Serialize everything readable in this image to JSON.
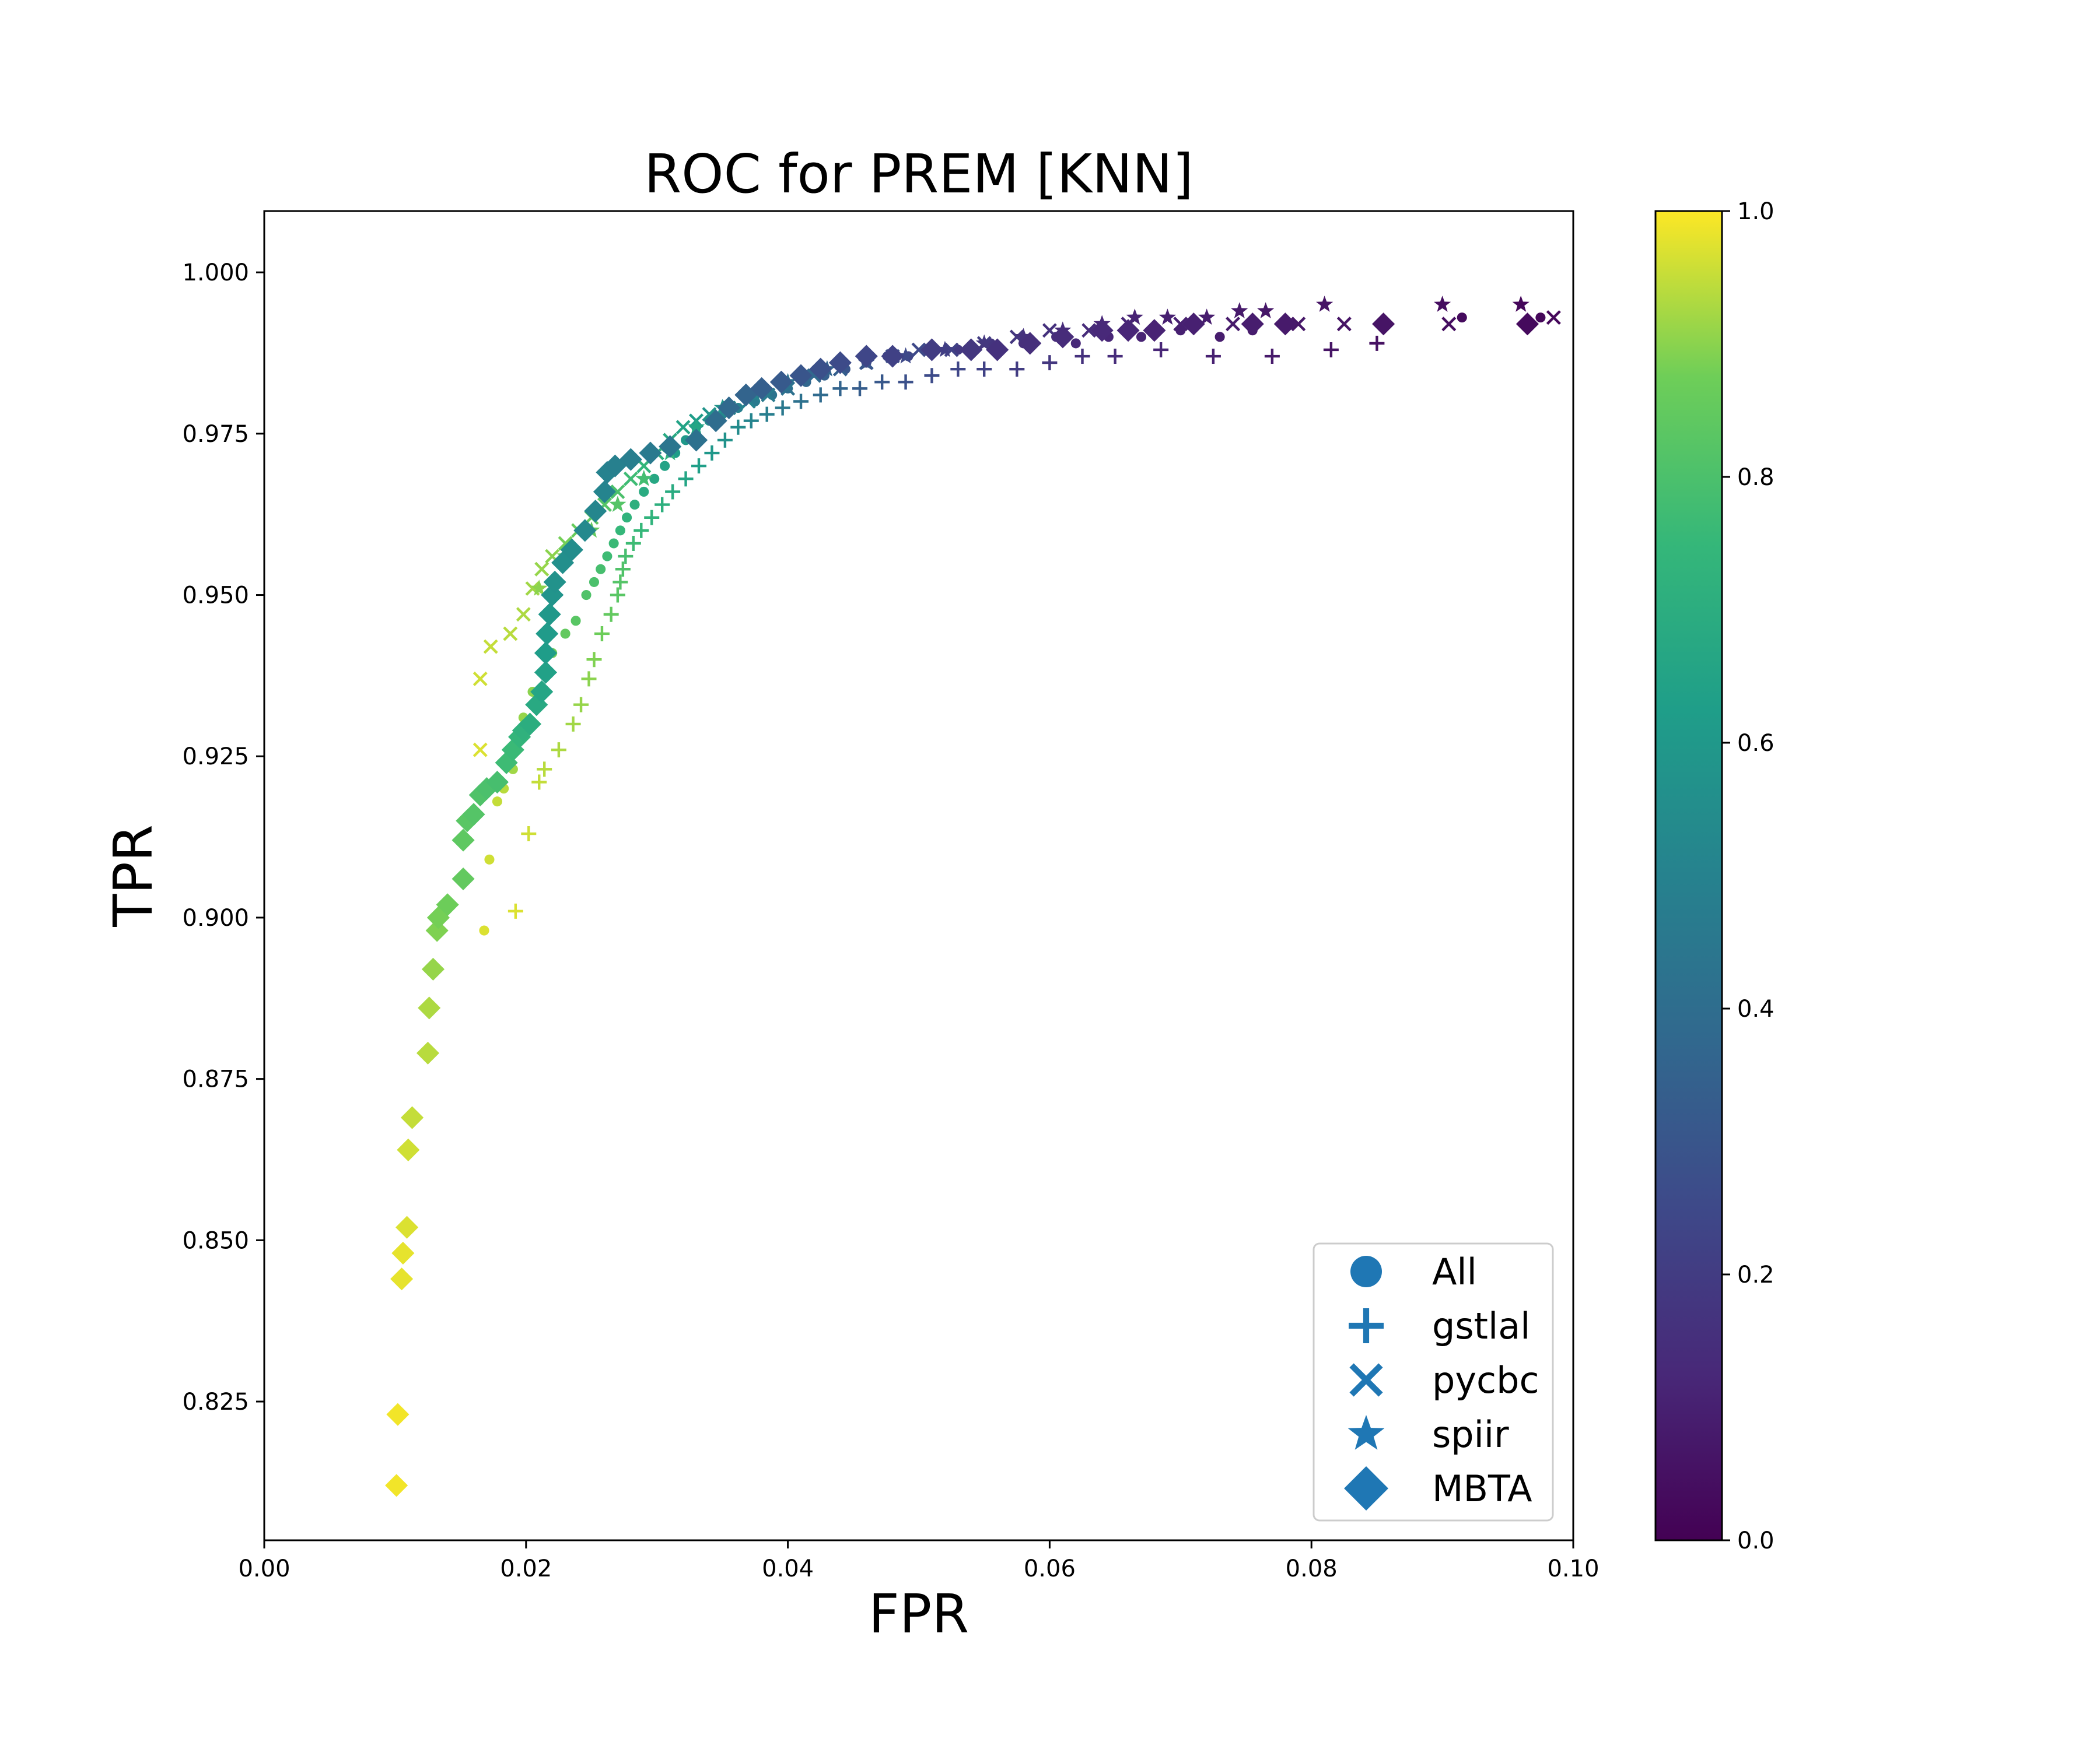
{
  "chart_data": {
    "type": "scatter",
    "title": "ROC for PREM [KNN]",
    "xlabel": "FPR",
    "ylabel": "TPR",
    "xlim": [
      0.0,
      0.1
    ],
    "ylim": [
      0.8035,
      1.0095
    ],
    "xticks": [
      "0.00",
      "0.02",
      "0.04",
      "0.06",
      "0.08",
      "0.10"
    ],
    "yticks": [
      "0.825",
      "0.850",
      "0.875",
      "0.900",
      "0.925",
      "0.950",
      "0.975",
      "1.000"
    ],
    "legend": {
      "position": "lower-right",
      "entries": [
        "All",
        "gstlal",
        "pycbc",
        "spiir",
        "MBTA"
      ]
    },
    "colorbar": {
      "label": "",
      "range": [
        0.0,
        1.0
      ],
      "ticks": [
        "0.0",
        "0.2",
        "0.4",
        "0.6",
        "0.8",
        "1.0"
      ],
      "colormap": "viridis"
    },
    "series": [
      {
        "name": "All",
        "marker": "circle",
        "points": [
          [
            0.0168,
            0.898,
            0.97
          ],
          [
            0.0172,
            0.909,
            0.96
          ],
          [
            0.0178,
            0.918,
            0.95
          ],
          [
            0.0183,
            0.92,
            0.94
          ],
          [
            0.019,
            0.923,
            0.92
          ],
          [
            0.0198,
            0.931,
            0.91
          ],
          [
            0.0205,
            0.935,
            0.9
          ],
          [
            0.0212,
            0.938,
            0.89
          ],
          [
            0.022,
            0.941,
            0.87
          ],
          [
            0.023,
            0.944,
            0.85
          ],
          [
            0.0238,
            0.946,
            0.83
          ],
          [
            0.0246,
            0.95,
            0.81
          ],
          [
            0.0252,
            0.952,
            0.8
          ],
          [
            0.0257,
            0.954,
            0.79
          ],
          [
            0.0262,
            0.956,
            0.77
          ],
          [
            0.0267,
            0.958,
            0.76
          ],
          [
            0.0272,
            0.96,
            0.75
          ],
          [
            0.0277,
            0.962,
            0.73
          ],
          [
            0.0283,
            0.964,
            0.71
          ],
          [
            0.029,
            0.966,
            0.69
          ],
          [
            0.0298,
            0.968,
            0.67
          ],
          [
            0.0306,
            0.97,
            0.65
          ],
          [
            0.0314,
            0.972,
            0.62
          ],
          [
            0.0322,
            0.974,
            0.6
          ],
          [
            0.033,
            0.976,
            0.58
          ],
          [
            0.034,
            0.977,
            0.55
          ],
          [
            0.035,
            0.978,
            0.52
          ],
          [
            0.0362,
            0.979,
            0.49
          ],
          [
            0.0375,
            0.98,
            0.46
          ],
          [
            0.0388,
            0.981,
            0.43
          ],
          [
            0.04,
            0.982,
            0.4
          ],
          [
            0.0414,
            0.983,
            0.37
          ],
          [
            0.0428,
            0.984,
            0.34
          ],
          [
            0.0444,
            0.985,
            0.3
          ],
          [
            0.046,
            0.986,
            0.27
          ],
          [
            0.0476,
            0.987,
            0.25
          ],
          [
            0.0492,
            0.987,
            0.23
          ],
          [
            0.051,
            0.988,
            0.21
          ],
          [
            0.053,
            0.988,
            0.19
          ],
          [
            0.0555,
            0.989,
            0.17
          ],
          [
            0.058,
            0.989,
            0.15
          ],
          [
            0.0605,
            0.99,
            0.14
          ],
          [
            0.062,
            0.989,
            0.13
          ],
          [
            0.0645,
            0.99,
            0.12
          ],
          [
            0.067,
            0.99,
            0.11
          ],
          [
            0.07,
            0.991,
            0.1
          ],
          [
            0.073,
            0.99,
            0.09
          ],
          [
            0.0755,
            0.991,
            0.08
          ],
          [
            0.078,
            0.992,
            0.07
          ],
          [
            0.0855,
            0.992,
            0.05
          ],
          [
            0.0915,
            0.993,
            0.03
          ],
          [
            0.0975,
            0.993,
            0.02
          ]
        ]
      },
      {
        "name": "gstlal",
        "marker": "plus",
        "points": [
          [
            0.0192,
            0.901,
            0.97
          ],
          [
            0.0202,
            0.913,
            0.96
          ],
          [
            0.021,
            0.921,
            0.95
          ],
          [
            0.0214,
            0.923,
            0.94
          ],
          [
            0.0225,
            0.926,
            0.93
          ],
          [
            0.0236,
            0.93,
            0.92
          ],
          [
            0.0242,
            0.933,
            0.91
          ],
          [
            0.0248,
            0.937,
            0.9
          ],
          [
            0.0252,
            0.94,
            0.89
          ],
          [
            0.0258,
            0.944,
            0.87
          ],
          [
            0.0265,
            0.947,
            0.85
          ],
          [
            0.027,
            0.95,
            0.83
          ],
          [
            0.0272,
            0.952,
            0.82
          ],
          [
            0.0274,
            0.954,
            0.81
          ],
          [
            0.0276,
            0.956,
            0.79
          ],
          [
            0.0282,
            0.958,
            0.77
          ],
          [
            0.0288,
            0.96,
            0.75
          ],
          [
            0.0296,
            0.962,
            0.73
          ],
          [
            0.0304,
            0.964,
            0.71
          ],
          [
            0.0312,
            0.966,
            0.69
          ],
          [
            0.0322,
            0.968,
            0.66
          ],
          [
            0.0332,
            0.97,
            0.63
          ],
          [
            0.0342,
            0.972,
            0.6
          ],
          [
            0.0352,
            0.974,
            0.57
          ],
          [
            0.0362,
            0.976,
            0.54
          ],
          [
            0.0372,
            0.977,
            0.51
          ],
          [
            0.0384,
            0.978,
            0.48
          ],
          [
            0.0396,
            0.979,
            0.45
          ],
          [
            0.041,
            0.98,
            0.42
          ],
          [
            0.0425,
            0.981,
            0.39
          ],
          [
            0.044,
            0.982,
            0.36
          ],
          [
            0.0455,
            0.982,
            0.33
          ],
          [
            0.0472,
            0.983,
            0.31
          ],
          [
            0.049,
            0.983,
            0.28
          ],
          [
            0.051,
            0.984,
            0.26
          ],
          [
            0.053,
            0.985,
            0.24
          ],
          [
            0.055,
            0.985,
            0.22
          ],
          [
            0.0575,
            0.985,
            0.2
          ],
          [
            0.06,
            0.986,
            0.18
          ],
          [
            0.0625,
            0.987,
            0.16
          ],
          [
            0.065,
            0.987,
            0.14
          ],
          [
            0.0685,
            0.988,
            0.12
          ],
          [
            0.0725,
            0.987,
            0.1
          ],
          [
            0.077,
            0.987,
            0.08
          ],
          [
            0.0815,
            0.988,
            0.06
          ],
          [
            0.085,
            0.989,
            0.05
          ]
        ]
      },
      {
        "name": "pycbc",
        "marker": "x",
        "points": [
          [
            0.0165,
            0.926,
            0.97
          ],
          [
            0.0165,
            0.937,
            0.96
          ],
          [
            0.0173,
            0.942,
            0.95
          ],
          [
            0.0188,
            0.944,
            0.94
          ],
          [
            0.0198,
            0.947,
            0.93
          ],
          [
            0.0205,
            0.951,
            0.92
          ],
          [
            0.0212,
            0.954,
            0.91
          ],
          [
            0.022,
            0.956,
            0.9
          ],
          [
            0.023,
            0.958,
            0.88
          ],
          [
            0.024,
            0.96,
            0.86
          ],
          [
            0.025,
            0.962,
            0.84
          ],
          [
            0.026,
            0.964,
            0.82
          ],
          [
            0.027,
            0.966,
            0.8
          ],
          [
            0.028,
            0.968,
            0.77
          ],
          [
            0.029,
            0.97,
            0.74
          ],
          [
            0.03,
            0.972,
            0.71
          ],
          [
            0.031,
            0.974,
            0.68
          ],
          [
            0.032,
            0.976,
            0.65
          ],
          [
            0.033,
            0.977,
            0.62
          ],
          [
            0.034,
            0.978,
            0.58
          ],
          [
            0.0355,
            0.979,
            0.54
          ],
          [
            0.037,
            0.98,
            0.5
          ],
          [
            0.0385,
            0.981,
            0.46
          ],
          [
            0.04,
            0.982,
            0.42
          ],
          [
            0.042,
            0.984,
            0.38
          ],
          [
            0.044,
            0.985,
            0.34
          ],
          [
            0.046,
            0.986,
            0.31
          ],
          [
            0.048,
            0.987,
            0.28
          ],
          [
            0.05,
            0.988,
            0.25
          ],
          [
            0.0525,
            0.988,
            0.22
          ],
          [
            0.055,
            0.989,
            0.2
          ],
          [
            0.0575,
            0.99,
            0.18
          ],
          [
            0.06,
            0.991,
            0.16
          ],
          [
            0.063,
            0.991,
            0.14
          ],
          [
            0.066,
            0.992,
            0.12
          ],
          [
            0.07,
            0.992,
            0.1
          ],
          [
            0.074,
            0.992,
            0.08
          ],
          [
            0.079,
            0.992,
            0.07
          ],
          [
            0.0825,
            0.992,
            0.06
          ],
          [
            0.0905,
            0.992,
            0.04
          ],
          [
            0.0985,
            0.993,
            0.02
          ]
        ]
      },
      {
        "name": "spiir",
        "marker": "star",
        "points": [
          [
            0.021,
            0.951,
            0.9
          ],
          [
            0.023,
            0.956,
            0.88
          ],
          [
            0.025,
            0.96,
            0.85
          ],
          [
            0.027,
            0.964,
            0.82
          ],
          [
            0.029,
            0.968,
            0.78
          ],
          [
            0.031,
            0.972,
            0.72
          ],
          [
            0.033,
            0.976,
            0.66
          ],
          [
            0.035,
            0.979,
            0.58
          ],
          [
            0.0375,
            0.981,
            0.5
          ],
          [
            0.04,
            0.983,
            0.43
          ],
          [
            0.043,
            0.985,
            0.36
          ],
          [
            0.046,
            0.986,
            0.3
          ],
          [
            0.049,
            0.987,
            0.25
          ],
          [
            0.052,
            0.988,
            0.21
          ],
          [
            0.055,
            0.989,
            0.18
          ],
          [
            0.058,
            0.99,
            0.16
          ],
          [
            0.061,
            0.991,
            0.14
          ],
          [
            0.064,
            0.992,
            0.12
          ],
          [
            0.0665,
            0.993,
            0.11
          ],
          [
            0.069,
            0.993,
            0.1
          ],
          [
            0.072,
            0.993,
            0.09
          ],
          [
            0.0745,
            0.994,
            0.08
          ],
          [
            0.0765,
            0.994,
            0.07
          ],
          [
            0.081,
            0.995,
            0.06
          ],
          [
            0.09,
            0.995,
            0.04
          ],
          [
            0.096,
            0.995,
            0.02
          ]
        ]
      },
      {
        "name": "MBTA",
        "marker": "diamond",
        "points": [
          [
            0.0101,
            0.812,
            0.99
          ],
          [
            0.0102,
            0.823,
            0.99
          ],
          [
            0.0105,
            0.844,
            0.98
          ],
          [
            0.0106,
            0.848,
            0.98
          ],
          [
            0.0109,
            0.852,
            0.97
          ],
          [
            0.011,
            0.864,
            0.96
          ],
          [
            0.0113,
            0.869,
            0.95
          ],
          [
            0.0125,
            0.879,
            0.94
          ],
          [
            0.0126,
            0.886,
            0.93
          ],
          [
            0.0129,
            0.892,
            0.91
          ],
          [
            0.0132,
            0.898,
            0.89
          ],
          [
            0.0133,
            0.9,
            0.88
          ],
          [
            0.014,
            0.902,
            0.87
          ],
          [
            0.0152,
            0.906,
            0.85
          ],
          [
            0.0152,
            0.912,
            0.84
          ],
          [
            0.0155,
            0.915,
            0.83
          ],
          [
            0.016,
            0.916,
            0.82
          ],
          [
            0.0165,
            0.919,
            0.81
          ],
          [
            0.017,
            0.92,
            0.8
          ],
          [
            0.0178,
            0.921,
            0.79
          ],
          [
            0.0185,
            0.924,
            0.77
          ],
          [
            0.019,
            0.926,
            0.76
          ],
          [
            0.0195,
            0.928,
            0.74
          ],
          [
            0.0198,
            0.929,
            0.72
          ],
          [
            0.0203,
            0.93,
            0.7
          ],
          [
            0.0208,
            0.933,
            0.68
          ],
          [
            0.0212,
            0.935,
            0.66
          ],
          [
            0.0215,
            0.938,
            0.64
          ],
          [
            0.0215,
            0.941,
            0.62
          ],
          [
            0.0216,
            0.944,
            0.61
          ],
          [
            0.0218,
            0.947,
            0.6
          ],
          [
            0.022,
            0.95,
            0.58
          ],
          [
            0.0222,
            0.952,
            0.57
          ],
          [
            0.0228,
            0.955,
            0.56
          ],
          [
            0.0235,
            0.957,
            0.55
          ],
          [
            0.0245,
            0.96,
            0.53
          ],
          [
            0.0253,
            0.963,
            0.52
          ],
          [
            0.026,
            0.966,
            0.51
          ],
          [
            0.0262,
            0.969,
            0.5
          ],
          [
            0.0268,
            0.97,
            0.49
          ],
          [
            0.028,
            0.971,
            0.48
          ],
          [
            0.0295,
            0.972,
            0.46
          ],
          [
            0.031,
            0.973,
            0.44
          ],
          [
            0.033,
            0.974,
            0.42
          ],
          [
            0.0345,
            0.977,
            0.4
          ],
          [
            0.0355,
            0.979,
            0.38
          ],
          [
            0.0368,
            0.981,
            0.36
          ],
          [
            0.038,
            0.982,
            0.34
          ],
          [
            0.0395,
            0.983,
            0.32
          ],
          [
            0.041,
            0.984,
            0.3
          ],
          [
            0.0425,
            0.985,
            0.28
          ],
          [
            0.044,
            0.986,
            0.26
          ],
          [
            0.046,
            0.987,
            0.24
          ],
          [
            0.048,
            0.987,
            0.22
          ],
          [
            0.051,
            0.988,
            0.2
          ],
          [
            0.054,
            0.988,
            0.18
          ],
          [
            0.056,
            0.988,
            0.16
          ],
          [
            0.0585,
            0.989,
            0.15
          ],
          [
            0.061,
            0.99,
            0.14
          ],
          [
            0.064,
            0.991,
            0.13
          ],
          [
            0.066,
            0.991,
            0.12
          ],
          [
            0.068,
            0.991,
            0.11
          ],
          [
            0.071,
            0.992,
            0.1
          ],
          [
            0.0755,
            0.992,
            0.09
          ],
          [
            0.078,
            0.992,
            0.08
          ],
          [
            0.0855,
            0.992,
            0.06
          ],
          [
            0.0965,
            0.992,
            0.03
          ]
        ]
      }
    ]
  }
}
